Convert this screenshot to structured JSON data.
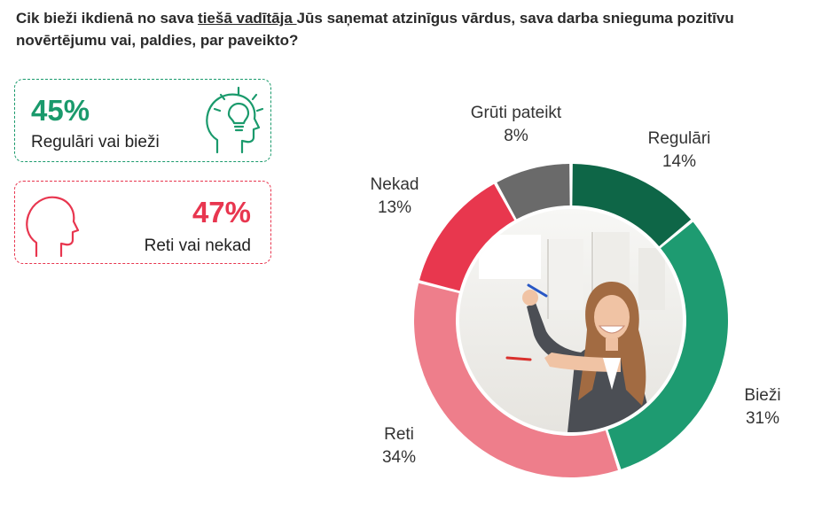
{
  "question": {
    "before": "Cik bieži ikdienā no sava ",
    "underlined": "tiešā vadītāja ",
    "after": "Jūs saņemat atzinīgus vārdus, sava darba snieguma pozitīvu novērtējumu vai, paldies, par paveikto?"
  },
  "summary": {
    "positive": {
      "value": "45%",
      "label": "Regulāri vai bieži",
      "color": "#1a9a6c",
      "icon": "head-lightbulb-icon"
    },
    "negative": {
      "value": "47%",
      "label": "Reti vai nekad",
      "color": "#e8364f",
      "icon": "head-silhouette-icon"
    }
  },
  "chart_data": {
    "type": "pie",
    "variant": "donut",
    "start_angle_deg": 0,
    "slices": [
      {
        "name": "Regulāri",
        "value": 14,
        "label": "14%",
        "color": "#0e6647"
      },
      {
        "name": "Bieži",
        "value": 31,
        "label": "31%",
        "color": "#1e9b71"
      },
      {
        "name": "Reti",
        "value": 34,
        "label": "34%",
        "color": "#ee7e8b"
      },
      {
        "name": "Nekad",
        "value": 13,
        "label": "13%",
        "color": "#e8374e"
      },
      {
        "name": "Grūti pateikt",
        "value": 8,
        "label": "8%",
        "color": "#6a6a6a"
      }
    ],
    "center_image": "photo-smiling-woman-presenting"
  }
}
